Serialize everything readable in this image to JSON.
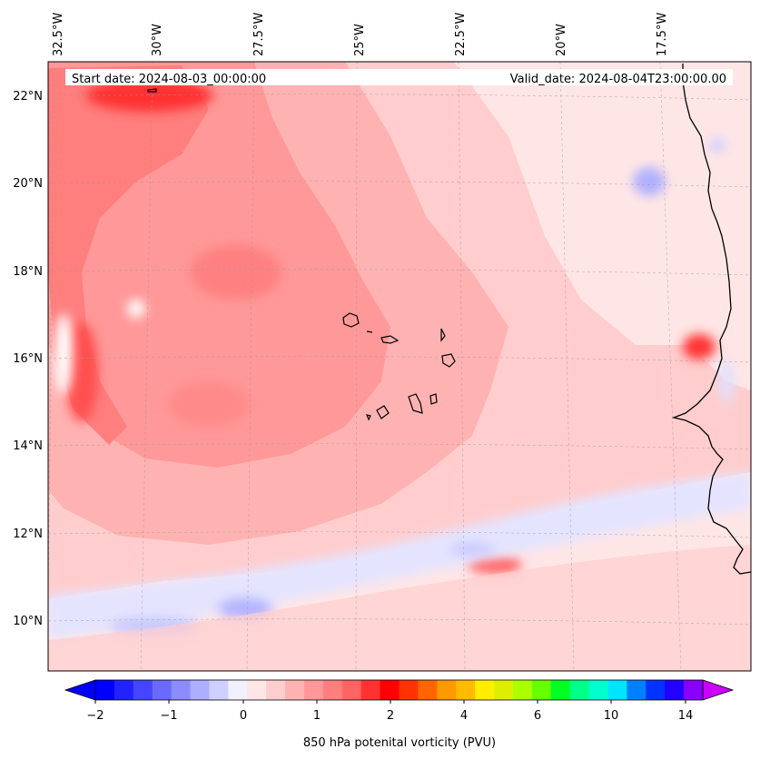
{
  "header": {
    "start_date": "Start date: 2024-08-03_00:00:00",
    "valid_date": "Valid_date: 2024-08-04T23:00:00.00"
  },
  "map": {
    "lon_labels": [
      "32.5°W",
      "30°W",
      "27.5°W",
      "25°W",
      "22.5°W",
      "20°W",
      "17.5°W"
    ],
    "lat_labels": [
      "22°N",
      "20°N",
      "18°N",
      "16°N",
      "14°N",
      "12°N",
      "10°N"
    ],
    "coastline_color": "#000000"
  },
  "colorbar": {
    "title": "850 hPa potenital vorticity (PVU)",
    "tick_labels": [
      "−2",
      "−1",
      "0",
      "1",
      "2",
      "4",
      "6",
      "10",
      "14"
    ],
    "colors": [
      "#0000ff",
      "#2222ff",
      "#4545ff",
      "#6a6aff",
      "#8c8cff",
      "#aeaeff",
      "#d0d0ff",
      "#f0f0ff",
      "#ffe6e6",
      "#ffcdcd",
      "#ffb2b2",
      "#ff9898",
      "#ff7e7e",
      "#ff6464",
      "#ff3232",
      "#ff0000",
      "#ff3300",
      "#ff6600",
      "#ff9900",
      "#ffbb00",
      "#ffee00",
      "#ddee00",
      "#aaff00",
      "#66ff00",
      "#00ff22",
      "#00ff88",
      "#00ffcc",
      "#00e5ff",
      "#0080ff",
      "#0033ff",
      "#2200ff",
      "#8800ff"
    ],
    "under_color": "#0000ff",
    "over_color": "#cc00ff"
  }
}
